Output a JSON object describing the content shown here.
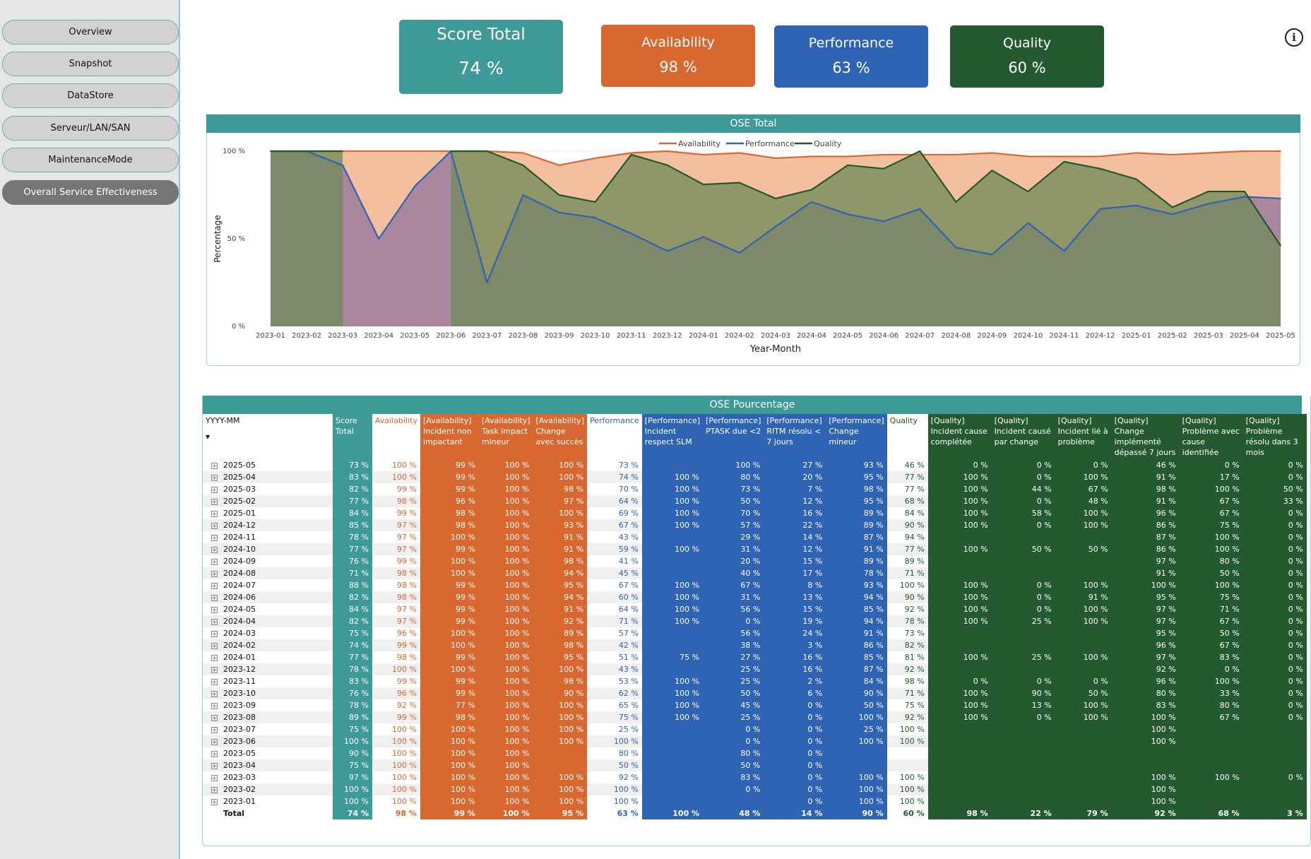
{
  "sidebar": {
    "items": [
      {
        "label": "Overview",
        "active": false
      },
      {
        "label": "Snapshot",
        "active": false
      },
      {
        "label": "DataStore",
        "active": false
      },
      {
        "label": "Serveur/LAN/SAN",
        "active": false
      },
      {
        "label": "MaintenanceMode",
        "active": false
      },
      {
        "label": "Overall Service Effectiveness",
        "active": true
      }
    ]
  },
  "cards": {
    "total": {
      "title": "Score Total",
      "value": "74 %",
      "color": "#3d9a97"
    },
    "availability": {
      "title": "Availability",
      "value": "98 %",
      "color": "#d8682f"
    },
    "performance": {
      "title": "Performance",
      "value": "63 %",
      "color": "#2f63b3"
    },
    "quality": {
      "title": "Quality",
      "value": "60 %",
      "color": "#255a31"
    }
  },
  "info_icon": "info-icon",
  "chart_data": {
    "type": "area",
    "title": "OSE Total",
    "xlabel": "Year-Month",
    "ylabel": "Percentage",
    "ylim": [
      0,
      100
    ],
    "yticks": [
      "0 %",
      "50 %",
      "100 %"
    ],
    "legend_position": "top-center",
    "x": [
      "2023-01",
      "2023-02",
      "2023-03",
      "2023-04",
      "2023-05",
      "2023-06",
      "2023-07",
      "2023-08",
      "2023-09",
      "2023-10",
      "2023-11",
      "2023-12",
      "2024-01",
      "2024-02",
      "2024-03",
      "2024-04",
      "2024-05",
      "2024-06",
      "2024-07",
      "2024-08",
      "2024-09",
      "2024-10",
      "2024-11",
      "2024-12",
      "2025-01",
      "2025-02",
      "2025-03",
      "2025-04",
      "2025-05"
    ],
    "series": [
      {
        "name": "Availability",
        "color": "#d8682f",
        "values": [
          100,
          100,
          100,
          100,
          100,
          100,
          100,
          99,
          92,
          96,
          99,
          100,
          98,
          99,
          96,
          97,
          97,
          98,
          98,
          98,
          99,
          97,
          97,
          97,
          99,
          98,
          99,
          100,
          100
        ]
      },
      {
        "name": "Performance",
        "color": "#2f63b3",
        "values": [
          100,
          100,
          92,
          50,
          80,
          100,
          25,
          75,
          65,
          62,
          53,
          43,
          51,
          42,
          57,
          71,
          64,
          60,
          67,
          45,
          41,
          59,
          43,
          67,
          69,
          64,
          70,
          74,
          73
        ]
      },
      {
        "name": "Quality",
        "color": "#1f5a2c",
        "values": [
          100,
          100,
          100,
          null,
          null,
          100,
          100,
          92,
          75,
          71,
          98,
          92,
          81,
          82,
          73,
          78,
          92,
          90,
          100,
          71,
          89,
          77,
          94,
          90,
          84,
          68,
          77,
          77,
          46
        ]
      }
    ]
  },
  "table": {
    "title": "OSE Pourcentage",
    "headers": [
      {
        "label": "YYYY-MM",
        "group": "ym"
      },
      {
        "label": "Score Total",
        "group": "score"
      },
      {
        "label": "Availability",
        "group": "av"
      },
      {
        "label": "[Availability] Incident non impactant",
        "group": "avd"
      },
      {
        "label": "[Availability] Task impact mineur",
        "group": "avd"
      },
      {
        "label": "[Availability] Change avec succès",
        "group": "avd"
      },
      {
        "label": "Performance",
        "group": "pf"
      },
      {
        "label": "[Performance] Incident respect SLM",
        "group": "pfd"
      },
      {
        "label": "[Performance] PTASK due <2",
        "group": "pfd"
      },
      {
        "label": "[Performance] RITM résolu < 7 jours",
        "group": "pfd"
      },
      {
        "label": "[Performance] Change mineur",
        "group": "pfd"
      },
      {
        "label": "Quality",
        "group": "ql"
      },
      {
        "label": "[Quality] Incident cause complétée",
        "group": "qld"
      },
      {
        "label": "[Quality] Incident causé par change",
        "group": "qld"
      },
      {
        "label": "[Quality] Incident lié à problème",
        "group": "qld"
      },
      {
        "label": "[Quality] Change implémenté dépassé 7 jours",
        "group": "qld"
      },
      {
        "label": "[Quality] Problème avec cause identifiée",
        "group": "qld"
      },
      {
        "label": "[Quality] Problème résolu dans 3 mois",
        "group": "qld"
      }
    ],
    "rows": [
      [
        "2025-05",
        "73 %",
        "100 %",
        "99 %",
        "100 %",
        "100 %",
        "73 %",
        "",
        "100 %",
        "27 %",
        "93 %",
        "46 %",
        "0 %",
        "0 %",
        "0 %",
        "46 %",
        "0 %",
        "0 %"
      ],
      [
        "2025-04",
        "83 %",
        "100 %",
        "99 %",
        "100 %",
        "100 %",
        "74 %",
        "100 %",
        "80 %",
        "20 %",
        "95 %",
        "77 %",
        "100 %",
        "0 %",
        "100 %",
        "91 %",
        "17 %",
        "0 %"
      ],
      [
        "2025-03",
        "82 %",
        "99 %",
        "99 %",
        "100 %",
        "98 %",
        "70 %",
        "100 %",
        "73 %",
        "7 %",
        "98 %",
        "77 %",
        "100 %",
        "44 %",
        "67 %",
        "98 %",
        "100 %",
        "50 %"
      ],
      [
        "2025-02",
        "77 %",
        "98 %",
        "96 %",
        "100 %",
        "97 %",
        "64 %",
        "100 %",
        "50 %",
        "12 %",
        "95 %",
        "68 %",
        "100 %",
        "0 %",
        "48 %",
        "91 %",
        "67 %",
        "33 %"
      ],
      [
        "2025-01",
        "84 %",
        "99 %",
        "98 %",
        "100 %",
        "100 %",
        "69 %",
        "100 %",
        "70 %",
        "16 %",
        "89 %",
        "84 %",
        "100 %",
        "58 %",
        "100 %",
        "96 %",
        "67 %",
        "0 %"
      ],
      [
        "2024-12",
        "85 %",
        "97 %",
        "98 %",
        "100 %",
        "93 %",
        "67 %",
        "100 %",
        "57 %",
        "22 %",
        "89 %",
        "90 %",
        "100 %",
        "0 %",
        "100 %",
        "86 %",
        "75 %",
        "0 %"
      ],
      [
        "2024-11",
        "78 %",
        "97 %",
        "100 %",
        "100 %",
        "91 %",
        "43 %",
        "",
        "29 %",
        "14 %",
        "87 %",
        "94 %",
        "",
        "",
        "",
        "87 %",
        "100 %",
        "0 %"
      ],
      [
        "2024-10",
        "77 %",
        "97 %",
        "99 %",
        "100 %",
        "91 %",
        "59 %",
        "100 %",
        "31 %",
        "12 %",
        "91 %",
        "77 %",
        "100 %",
        "50 %",
        "50 %",
        "86 %",
        "100 %",
        "0 %"
      ],
      [
        "2024-09",
        "76 %",
        "99 %",
        "100 %",
        "100 %",
        "98 %",
        "41 %",
        "",
        "20 %",
        "15 %",
        "89 %",
        "89 %",
        "",
        "",
        "",
        "97 %",
        "80 %",
        "0 %"
      ],
      [
        "2024-08",
        "71 %",
        "98 %",
        "100 %",
        "100 %",
        "94 %",
        "45 %",
        "",
        "40 %",
        "17 %",
        "78 %",
        "71 %",
        "",
        "",
        "",
        "91 %",
        "50 %",
        "0 %"
      ],
      [
        "2024-07",
        "88 %",
        "98 %",
        "99 %",
        "100 %",
        "95 %",
        "67 %",
        "100 %",
        "67 %",
        "8 %",
        "93 %",
        "100 %",
        "100 %",
        "0 %",
        "100 %",
        "100 %",
        "100 %",
        "0 %"
      ],
      [
        "2024-06",
        "82 %",
        "98 %",
        "99 %",
        "100 %",
        "94 %",
        "60 %",
        "100 %",
        "31 %",
        "13 %",
        "94 %",
        "90 %",
        "100 %",
        "0 %",
        "91 %",
        "95 %",
        "75 %",
        "0 %"
      ],
      [
        "2024-05",
        "84 %",
        "97 %",
        "99 %",
        "100 %",
        "91 %",
        "64 %",
        "100 %",
        "56 %",
        "15 %",
        "85 %",
        "92 %",
        "100 %",
        "0 %",
        "100 %",
        "97 %",
        "71 %",
        "0 %"
      ],
      [
        "2024-04",
        "82 %",
        "97 %",
        "99 %",
        "100 %",
        "92 %",
        "71 %",
        "100 %",
        "0 %",
        "19 %",
        "94 %",
        "78 %",
        "100 %",
        "25 %",
        "100 %",
        "97 %",
        "67 %",
        "0 %"
      ],
      [
        "2024-03",
        "75 %",
        "96 %",
        "100 %",
        "100 %",
        "89 %",
        "57 %",
        "",
        "56 %",
        "24 %",
        "91 %",
        "73 %",
        "",
        "",
        "",
        "95 %",
        "50 %",
        "0 %"
      ],
      [
        "2024-02",
        "74 %",
        "99 %",
        "100 %",
        "100 %",
        "98 %",
        "42 %",
        "",
        "38 %",
        "3 %",
        "86 %",
        "82 %",
        "",
        "",
        "",
        "96 %",
        "67 %",
        "0 %"
      ],
      [
        "2024-01",
        "77 %",
        "98 %",
        "99 %",
        "100 %",
        "95 %",
        "51 %",
        "75 %",
        "27 %",
        "16 %",
        "85 %",
        "81 %",
        "100 %",
        "25 %",
        "100 %",
        "97 %",
        "83 %",
        "0 %"
      ],
      [
        "2023-12",
        "78 %",
        "100 %",
        "100 %",
        "100 %",
        "100 %",
        "43 %",
        "",
        "25 %",
        "16 %",
        "87 %",
        "92 %",
        "",
        "",
        "",
        "92 %",
        "0 %",
        "0 %"
      ],
      [
        "2023-11",
        "83 %",
        "99 %",
        "99 %",
        "100 %",
        "98 %",
        "53 %",
        "100 %",
        "25 %",
        "2 %",
        "84 %",
        "98 %",
        "0 %",
        "0 %",
        "0 %",
        "96 %",
        "100 %",
        "0 %"
      ],
      [
        "2023-10",
        "76 %",
        "96 %",
        "99 %",
        "100 %",
        "90 %",
        "62 %",
        "100 %",
        "50 %",
        "6 %",
        "90 %",
        "71 %",
        "100 %",
        "90 %",
        "50 %",
        "80 %",
        "33 %",
        "0 %"
      ],
      [
        "2023-09",
        "78 %",
        "92 %",
        "77 %",
        "100 %",
        "100 %",
        "65 %",
        "100 %",
        "45 %",
        "0 %",
        "50 %",
        "75 %",
        "100 %",
        "13 %",
        "100 %",
        "83 %",
        "80 %",
        "0 %"
      ],
      [
        "2023-08",
        "89 %",
        "99 %",
        "98 %",
        "100 %",
        "100 %",
        "75 %",
        "100 %",
        "25 %",
        "0 %",
        "100 %",
        "92 %",
        "100 %",
        "0 %",
        "100 %",
        "100 %",
        "67 %",
        "0 %"
      ],
      [
        "2023-07",
        "75 %",
        "100 %",
        "100 %",
        "100 %",
        "100 %",
        "25 %",
        "",
        "0 %",
        "0 %",
        "25 %",
        "100 %",
        "",
        "",
        "",
        "100 %",
        "",
        ""
      ],
      [
        "2023-06",
        "100 %",
        "100 %",
        "100 %",
        "100 %",
        "100 %",
        "100 %",
        "",
        "0 %",
        "0 %",
        "100 %",
        "100 %",
        "",
        "",
        "",
        "100 %",
        "",
        ""
      ],
      [
        "2023-05",
        "90 %",
        "100 %",
        "100 %",
        "100 %",
        "",
        "80 %",
        "",
        "80 %",
        "0 %",
        "",
        "",
        "",
        "",
        "",
        "",
        "",
        ""
      ],
      [
        "2023-04",
        "75 %",
        "100 %",
        "100 %",
        "100 %",
        "",
        "50 %",
        "",
        "50 %",
        "0 %",
        "",
        "",
        "",
        "",
        "",
        "",
        "",
        ""
      ],
      [
        "2023-03",
        "97 %",
        "100 %",
        "100 %",
        "100 %",
        "100 %",
        "92 %",
        "",
        "83 %",
        "0 %",
        "100 %",
        "100 %",
        "",
        "",
        "",
        "100 %",
        "100 %",
        "0 %"
      ],
      [
        "2023-02",
        "100 %",
        "100 %",
        "100 %",
        "100 %",
        "100 %",
        "100 %",
        "",
        "0 %",
        "0 %",
        "100 %",
        "100 %",
        "",
        "",
        "",
        "100 %",
        "",
        ""
      ],
      [
        "2023-01",
        "100 %",
        "100 %",
        "100 %",
        "100 %",
        "100 %",
        "100 %",
        "",
        "",
        "0 %",
        "100 %",
        "100 %",
        "",
        "",
        "",
        "100 %",
        "",
        ""
      ]
    ],
    "total": [
      "Total",
      "74 %",
      "98 %",
      "99 %",
      "100 %",
      "95 %",
      "63 %",
      "100 %",
      "48 %",
      "14 %",
      "90 %",
      "60 %",
      "98 %",
      "22 %",
      "79 %",
      "92 %",
      "68 %",
      "3 %"
    ]
  }
}
